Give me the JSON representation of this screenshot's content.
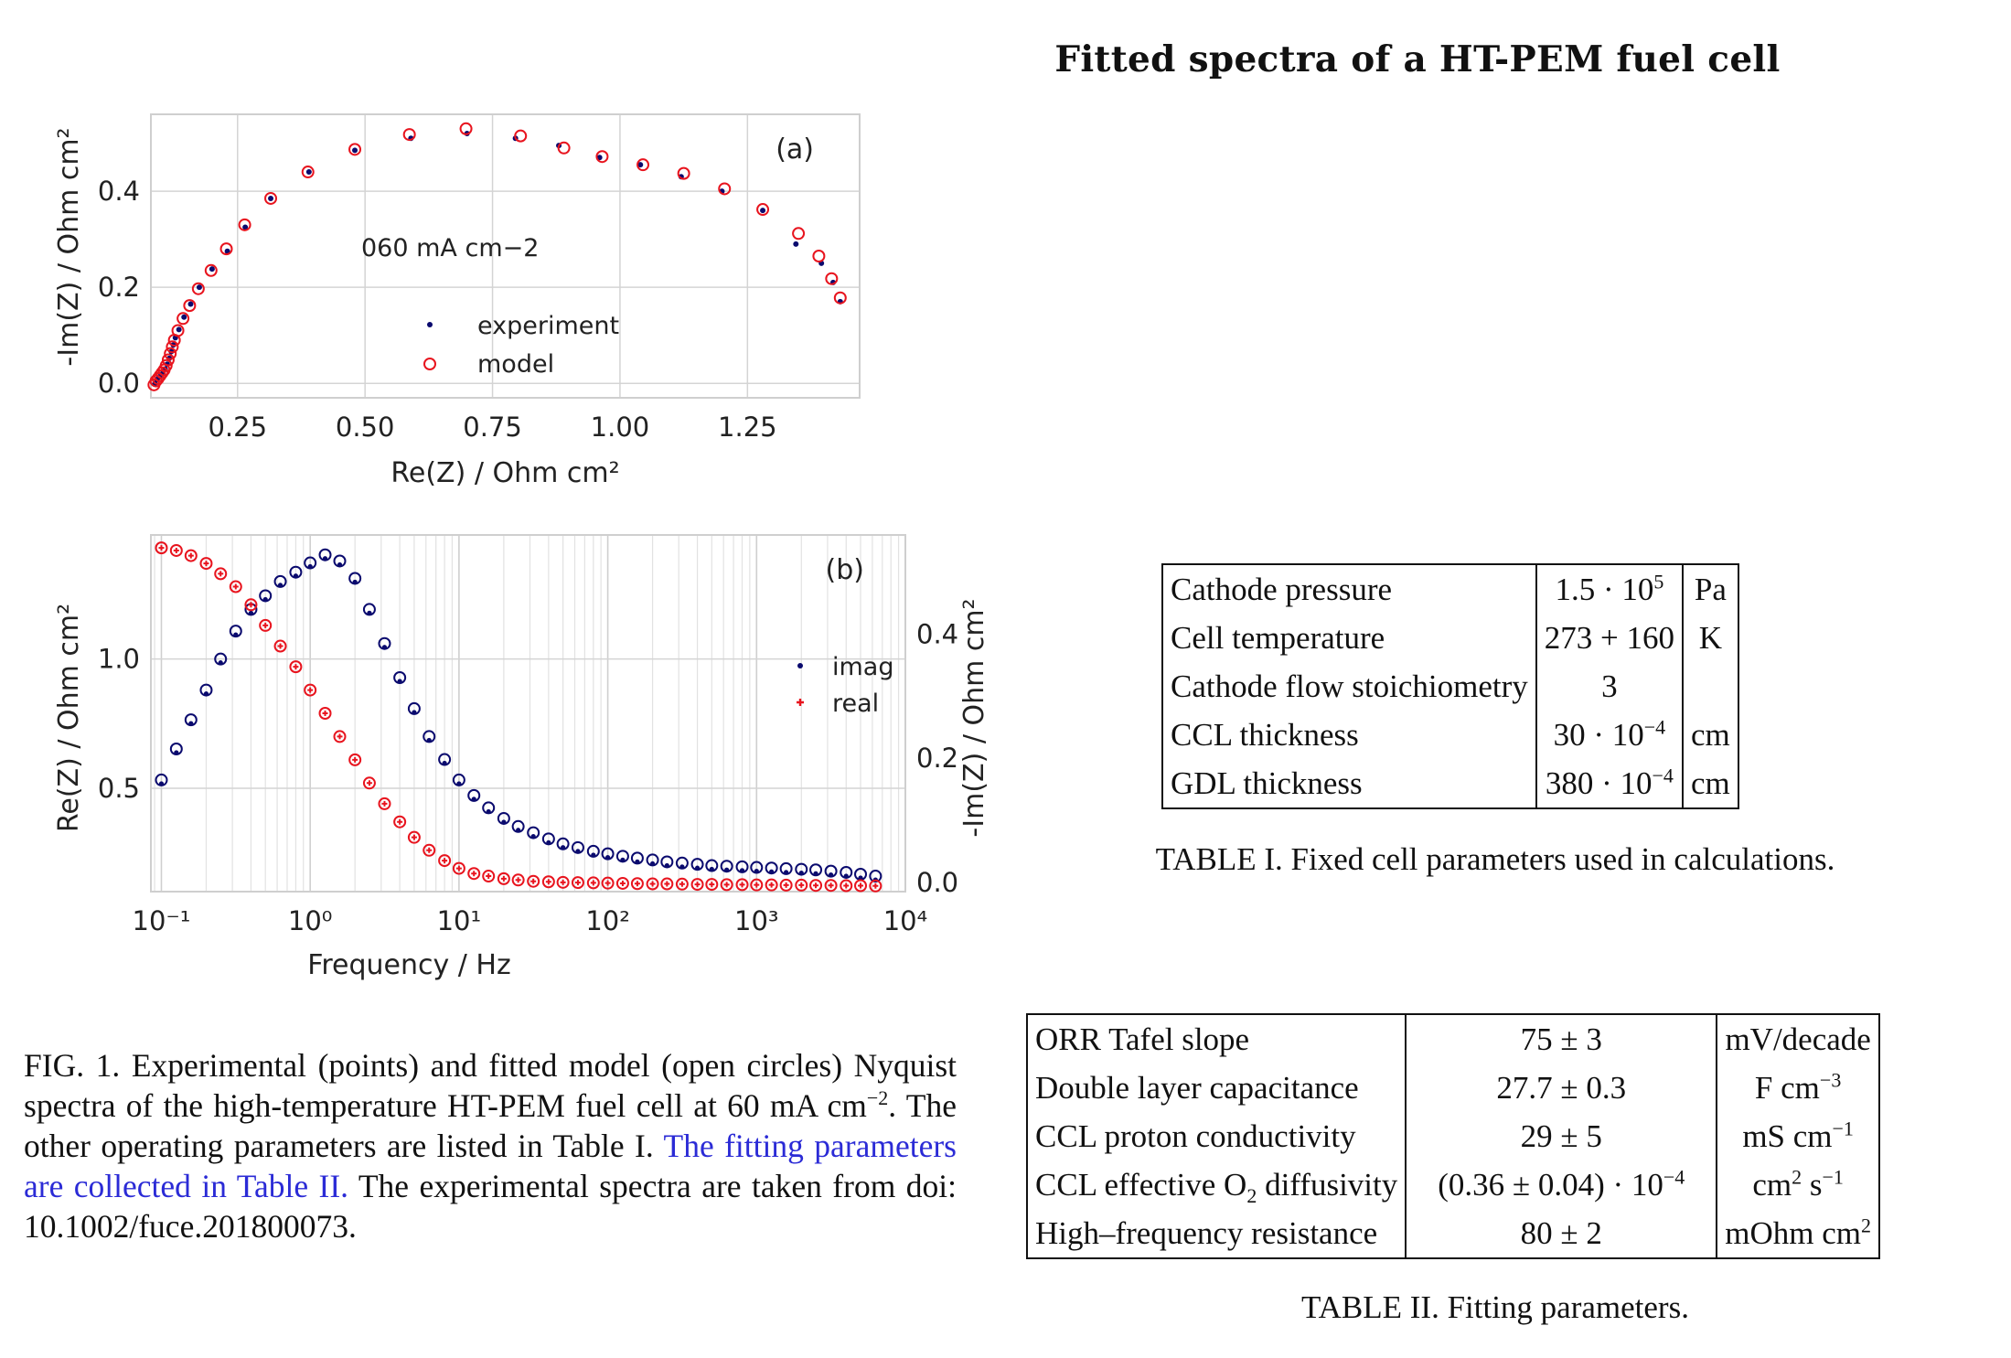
{
  "title": "Fitted spectra of a HT-PEM fuel cell",
  "chart_data": [
    {
      "type": "scatter",
      "panel_label": "(a)",
      "annotation": "060 mA cm−2",
      "xlabel": "Re(Z) / Ohm cm²",
      "ylabel": "-Im(Z) / Ohm cm²",
      "xlim": [
        0.08,
        1.47
      ],
      "ylim": [
        -0.03,
        0.56
      ],
      "xticks": [
        0.25,
        0.5,
        0.75,
        1.0,
        1.25
      ],
      "xtick_labels": [
        "0.25",
        "0.50",
        "0.75",
        "1.00",
        "1.25"
      ],
      "yticks": [
        0.0,
        0.2,
        0.4
      ],
      "ytick_labels": [
        "0.0",
        "0.2",
        "0.4"
      ],
      "grid": true,
      "legend_position": "center",
      "series": [
        {
          "name": "experiment",
          "marker": "dot",
          "color": "#0a0a6e",
          "x": [
            0.088,
            0.092,
            0.096,
            0.1,
            0.104,
            0.108,
            0.112,
            0.116,
            0.12,
            0.124,
            0.128,
            0.135,
            0.145,
            0.158,
            0.175,
            0.2,
            0.23,
            0.265,
            0.315,
            0.39,
            0.48,
            0.59,
            0.7,
            0.795,
            0.88,
            0.96,
            1.04,
            1.12,
            1.2,
            1.28,
            1.345,
            1.395,
            1.418,
            1.432
          ],
          "y": [
            0.0,
            0.008,
            0.013,
            0.018,
            0.024,
            0.03,
            0.04,
            0.052,
            0.066,
            0.08,
            0.095,
            0.112,
            0.138,
            0.165,
            0.2,
            0.238,
            0.275,
            0.325,
            0.385,
            0.44,
            0.485,
            0.51,
            0.52,
            0.51,
            0.495,
            0.47,
            0.455,
            0.43,
            0.4,
            0.36,
            0.29,
            0.25,
            0.21,
            0.17
          ]
        },
        {
          "name": "model",
          "marker": "open-circle",
          "color": "#e8141e",
          "x": [
            0.086,
            0.09,
            0.094,
            0.098,
            0.102,
            0.106,
            0.11,
            0.114,
            0.118,
            0.122,
            0.126,
            0.133,
            0.143,
            0.156,
            0.173,
            0.198,
            0.228,
            0.264,
            0.315,
            0.388,
            0.48,
            0.587,
            0.698,
            0.805,
            0.89,
            0.965,
            1.045,
            1.125,
            1.205,
            1.28,
            1.35,
            1.39,
            1.415,
            1.432
          ],
          "y": [
            -0.003,
            0.005,
            0.01,
            0.016,
            0.022,
            0.028,
            0.037,
            0.049,
            0.062,
            0.076,
            0.09,
            0.11,
            0.135,
            0.162,
            0.197,
            0.235,
            0.28,
            0.33,
            0.385,
            0.44,
            0.487,
            0.518,
            0.53,
            0.515,
            0.49,
            0.472,
            0.455,
            0.437,
            0.405,
            0.362,
            0.312,
            0.265,
            0.218,
            0.178
          ]
        }
      ]
    },
    {
      "type": "scatter",
      "panel_label": "(b)",
      "xlabel": "Frequency / Hz",
      "ylabel_left": "Re(Z) / Ohm cm²",
      "ylabel_right": "-Im(Z) / Ohm cm²",
      "xscale": "log",
      "xlim": [
        0.085,
        10000
      ],
      "xtick_labels": [
        "10⁻¹",
        "10⁰",
        "10¹",
        "10²",
        "10³",
        "10⁴"
      ],
      "ylim_left": [
        0.1,
        1.48
      ],
      "ylim_right": [
        -0.015,
        0.56
      ],
      "yticks_left": [
        "0.5",
        "1.0"
      ],
      "yticks_right": [
        "0.0",
        "0.2",
        "0.4"
      ],
      "grid": true,
      "legend_position": "right",
      "freq": [
        0.1,
        0.126,
        0.158,
        0.2,
        0.25,
        0.316,
        0.4,
        0.5,
        0.63,
        0.8,
        1.0,
        1.26,
        1.58,
        2.0,
        2.5,
        3.16,
        4.0,
        5.0,
        6.3,
        8.0,
        10,
        12.6,
        15.8,
        20,
        25,
        31.6,
        40,
        50,
        63,
        80,
        100,
        126,
        158,
        200,
        250,
        316,
        400,
        500,
        630,
        800,
        1000,
        1260,
        1580,
        2000,
        2500,
        3160,
        4000,
        5000,
        6300
      ],
      "series": [
        {
          "name": "imag",
          "axis": "right",
          "color": "#0a0a6e",
          "values": [
            0.165,
            0.215,
            0.262,
            0.31,
            0.36,
            0.405,
            0.44,
            0.462,
            0.485,
            0.5,
            0.515,
            0.528,
            0.518,
            0.49,
            0.44,
            0.385,
            0.33,
            0.28,
            0.235,
            0.198,
            0.165,
            0.14,
            0.12,
            0.103,
            0.09,
            0.08,
            0.07,
            0.062,
            0.056,
            0.05,
            0.046,
            0.042,
            0.039,
            0.036,
            0.033,
            0.031,
            0.029,
            0.027,
            0.026,
            0.025,
            0.024,
            0.023,
            0.022,
            0.021,
            0.02,
            0.018,
            0.016,
            0.013,
            0.01
          ]
        },
        {
          "name": "real",
          "axis": "left",
          "color": "#e8141e",
          "values": [
            1.43,
            1.42,
            1.4,
            1.37,
            1.33,
            1.28,
            1.21,
            1.13,
            1.05,
            0.97,
            0.88,
            0.79,
            0.7,
            0.61,
            0.52,
            0.44,
            0.37,
            0.31,
            0.26,
            0.22,
            0.19,
            0.17,
            0.16,
            0.15,
            0.145,
            0.14,
            0.138,
            0.136,
            0.135,
            0.134,
            0.133,
            0.132,
            0.131,
            0.13,
            0.13,
            0.129,
            0.128,
            0.128,
            0.127,
            0.127,
            0.126,
            0.126,
            0.125,
            0.125,
            0.124,
            0.124,
            0.123,
            0.123,
            0.122
          ]
        }
      ]
    }
  ],
  "caption": {
    "line1": "FIG. 1. Experimental (points) and fitted model (open circles) Nyquist spectra of the high-temperature HT-PEM fuel cell at 60 mA cm",
    "exp1": "−2",
    "line2": ". The other operating parameters are listed in Table I.",
    "blue": " The fitting parameters are collected in Table II.",
    "line3": " The experimental spectra are taken from doi: 10.1002/fuce.201800073."
  },
  "table1": {
    "caption": "TABLE I. Fixed cell parameters used in calculations.",
    "rows": [
      {
        "name": "Cathode pressure",
        "value": "1.5 · 10",
        "value_sup": "5",
        "unit": "Pa"
      },
      {
        "name": "Cell temperature",
        "value": "273 + 160",
        "value_sup": "",
        "unit": "K"
      },
      {
        "name": "Cathode flow stoichiometry",
        "value": "3",
        "value_sup": "",
        "unit": ""
      },
      {
        "name": "CCL thickness",
        "value": "30 · 10",
        "value_sup": "−4",
        "unit": "cm"
      },
      {
        "name": "GDL thickness",
        "value": "380 · 10",
        "value_sup": "−4",
        "unit": "cm"
      }
    ]
  },
  "table2": {
    "caption": "TABLE II. Fitting parameters.",
    "rows": [
      {
        "name": "ORR Tafel slope",
        "name_sub": "",
        "name_after": "",
        "value": "75 ± 3",
        "value_sup": "",
        "unit": "mV/decade",
        "unit_sup": "",
        "unit2": "",
        "unit2_sup": ""
      },
      {
        "name": "Double layer capacitance",
        "name_sub": "",
        "name_after": "",
        "value": "27.7 ± 0.3",
        "value_sup": "",
        "unit": "F cm",
        "unit_sup": "−3",
        "unit2": "",
        "unit2_sup": ""
      },
      {
        "name": "CCL proton conductivity",
        "name_sub": "",
        "name_after": "",
        "value": "29 ± 5",
        "value_sup": "",
        "unit": "mS cm",
        "unit_sup": "−1",
        "unit2": "",
        "unit2_sup": ""
      },
      {
        "name": "CCL effective O",
        "name_sub": "2",
        "name_after": " diffusivity",
        "value": "(0.36 ± 0.04) · 10",
        "value_sup": "−4",
        "unit": "cm",
        "unit_sup": "2",
        "unit2": " s",
        "unit2_sup": "−1"
      },
      {
        "name": "High–frequency resistance",
        "name_sub": "",
        "name_after": "",
        "value": "80 ± 2",
        "value_sup": "",
        "unit": "mOhm cm",
        "unit_sup": "2",
        "unit2": "",
        "unit2_sup": ""
      }
    ]
  }
}
